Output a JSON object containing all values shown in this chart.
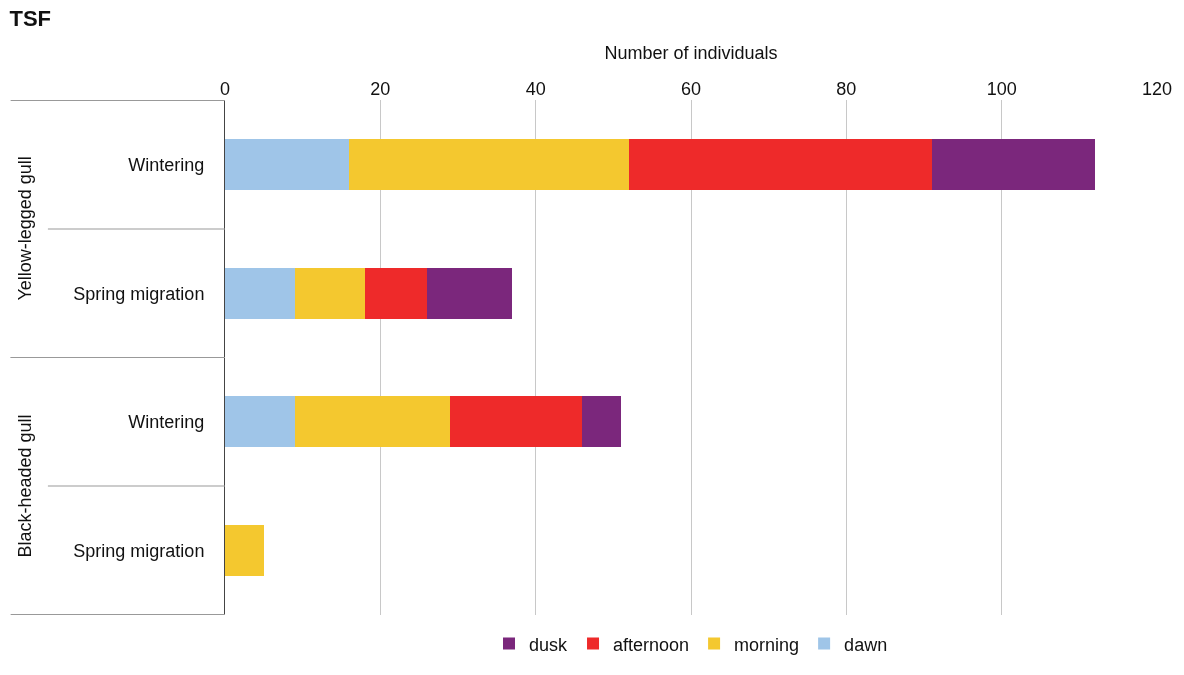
{
  "chart_data": {
    "type": "bar",
    "orientation": "horizontal",
    "stacked": true,
    "title": "TSF",
    "xlabel": "Number of individuals",
    "categories": [
      "Wintering",
      "Spring migration",
      "Wintering",
      "Spring migration"
    ],
    "annotations": [
      "Yellow-legged gull",
      "Black-headed gull"
    ],
    "series": [
      {
        "name": "dawn",
        "color": "#9fc5e8",
        "values": [
          16,
          9,
          9,
          0
        ]
      },
      {
        "name": "morning",
        "color": "#f4c82f",
        "values": [
          36,
          9,
          20,
          5
        ]
      },
      {
        "name": "afternoon",
        "color": "#ee2a2a",
        "values": [
          39,
          8,
          17,
          0
        ]
      },
      {
        "name": "dusk",
        "color": "#7b277c",
        "values": [
          21,
          11,
          5,
          0
        ]
      }
    ],
    "xlim": [
      0,
      120
    ],
    "xticks": [
      0,
      20,
      40,
      60,
      80,
      100,
      120
    ],
    "grid": "x",
    "legend": "bottom"
  }
}
